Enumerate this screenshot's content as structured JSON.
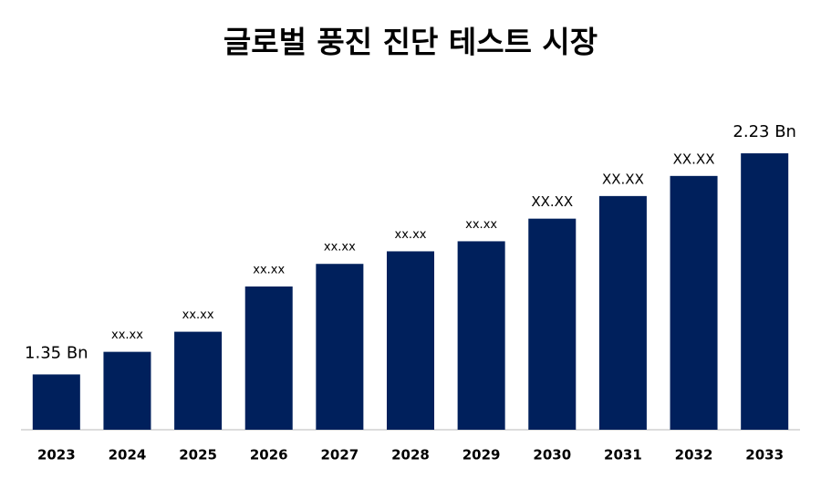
{
  "chart_data": {
    "type": "bar",
    "title": "글로벌 풍진 진단 테스트 시장",
    "categories": [
      "2023",
      "2024",
      "2025",
      "2026",
      "2027",
      "2028",
      "2029",
      "2030",
      "2031",
      "2032",
      "2033"
    ],
    "values": [
      1.35,
      1.44,
      1.52,
      1.7,
      1.79,
      1.84,
      1.88,
      1.97,
      2.06,
      2.14,
      2.23
    ],
    "value_labels": [
      "1.35 Bn",
      "xx.xx",
      "xx.xx",
      "xx.xx",
      "xx.xx",
      "xx.xx",
      "xx.xx",
      "XX.XX",
      "XX.XX",
      "XX.XX",
      "2.23 Bn"
    ],
    "color": "#00205c",
    "ylim": [
      1.13,
      2.35
    ]
  }
}
